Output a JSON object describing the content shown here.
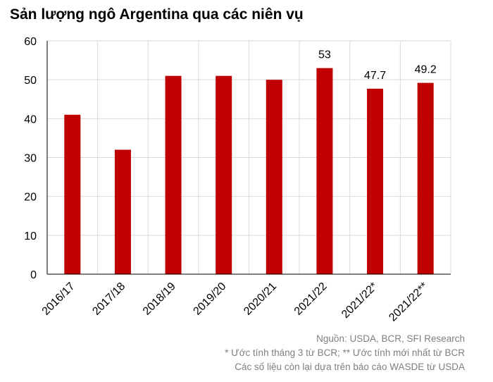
{
  "chart_data": {
    "type": "bar",
    "title": "Sản lượng ngô Argentina qua các niên vụ",
    "categories": [
      "2016/17",
      "2017/18",
      "2018/19",
      "2019/20",
      "2020/21",
      "2021/22",
      "2021/22*",
      "2021/22**"
    ],
    "values": [
      41,
      32,
      51,
      51,
      50,
      53,
      47.7,
      49.2
    ],
    "data_labels": [
      "",
      "",
      "",
      "",
      "",
      "53",
      "47.7",
      "49.2"
    ],
    "ylim": [
      0,
      60
    ],
    "yticks": [
      0,
      10,
      20,
      30,
      40,
      50,
      60
    ],
    "xlabel": "",
    "ylabel": "",
    "grid": true,
    "legend": "none",
    "bar_color": "#c00000",
    "grid_color": "#d9d9d9",
    "axis_color": "#000000"
  },
  "notes": {
    "source": "Nguồn: USDA, BCR, SFI Research",
    "estimates": "* Ước tính tháng 3 từ BCR; ** Ước tính mới nhất từ BCR",
    "remaining": "Các số liệu còn lại dựa trên báo cáo WASDE từ USDA"
  }
}
